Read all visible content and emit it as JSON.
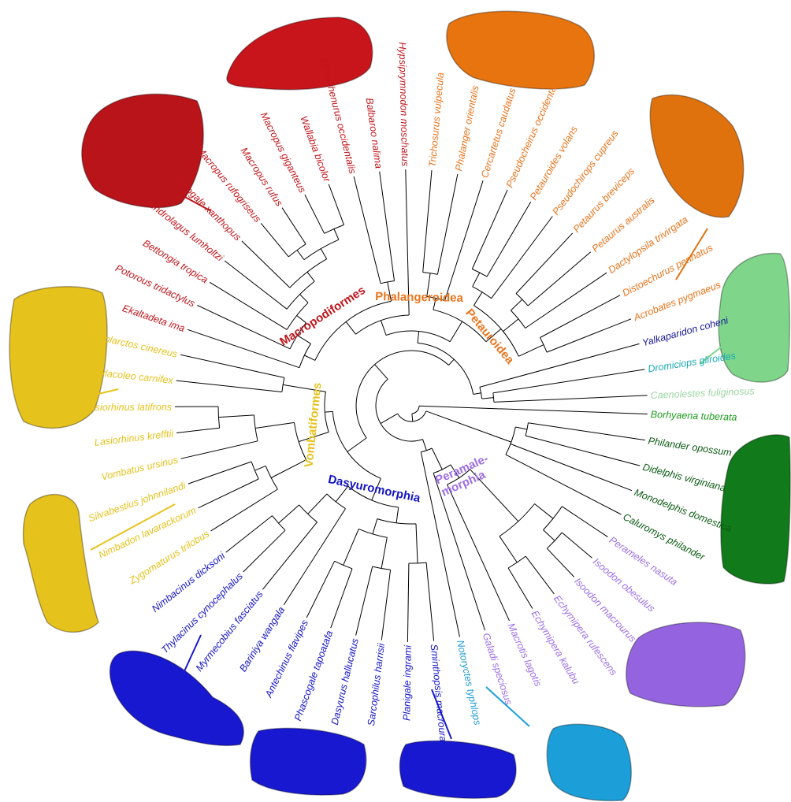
{
  "colors": {
    "macropodiformes": "#c0151b",
    "phalangeroidea": "#e8741c",
    "petauroidea": "#e8741c",
    "yalkaparidon": "#1a1a99",
    "dromiciops": "#19a9b8",
    "caenolestes": "#9bd6a3",
    "borhyaena": "#1c9a1c",
    "didelphimorphia": "#0c5a14",
    "peramelemorphia": "#9c6ee6",
    "notoryctes": "#1f9bd6",
    "dasyuromorphia": "#1414c4",
    "vombatiformes": "#e6c21c",
    "tree": "#000000"
  },
  "clades": {
    "macropodiformes": "Macropodiformes",
    "phalangeroidea": "Phalangeroidea",
    "petauroidea": "Petauroidea",
    "vombatiformes": "Vombatiformes",
    "dasyuromorphia": "Dasyuromorphia",
    "peramelemorphia_1": "Peramale-",
    "peramelemorphia_2": "morphia"
  },
  "taxa": [
    {
      "name": "Borhyaena tuberata",
      "group": "borhyaena"
    },
    {
      "name": "Philander opossum",
      "group": "didelphimorphia"
    },
    {
      "name": "Didelphis virginiana",
      "group": "didelphimorphia"
    },
    {
      "name": "Monodelphis domestica",
      "group": "didelphimorphia"
    },
    {
      "name": "Caluromys philander",
      "group": "didelphimorphia"
    },
    {
      "name": "Perameles nasuta",
      "group": "peramelemorphia"
    },
    {
      "name": "Isoodon obesulus",
      "group": "peramelemorphia"
    },
    {
      "name": "Isoodon macrourus",
      "group": "peramelemorphia"
    },
    {
      "name": "Echymipera rufescens",
      "group": "peramelemorphia"
    },
    {
      "name": "Echymipera kalubu",
      "group": "peramelemorphia"
    },
    {
      "name": "Macrotis lagotis",
      "group": "peramelemorphia"
    },
    {
      "name": "Galadi speciosus",
      "group": "peramelemorphia"
    },
    {
      "name": "Notoryctes typhlops",
      "group": "notoryctes"
    },
    {
      "name": "Sminthopsis macroura",
      "group": "dasyuromorphia"
    },
    {
      "name": "Planigale ingrami",
      "group": "dasyuromorphia"
    },
    {
      "name": "Sarcophilus harrisii",
      "group": "dasyuromorphia"
    },
    {
      "name": "Dasyurus hallucatus",
      "group": "dasyuromorphia"
    },
    {
      "name": "Phascogale tapoatafa",
      "group": "dasyuromorphia"
    },
    {
      "name": "Antechinus flavipes",
      "group": "dasyuromorphia"
    },
    {
      "name": "Bariniya wangala",
      "group": "dasyuromorphia"
    },
    {
      "name": "Myrmecobius fasciatus",
      "group": "dasyuromorphia"
    },
    {
      "name": "Thylacinus cynocephalus",
      "group": "dasyuromorphia"
    },
    {
      "name": "Nimbacinus dicksoni",
      "group": "dasyuromorphia"
    },
    {
      "name": "Zygomaturus trilobus",
      "group": "vombatiformes"
    },
    {
      "name": "Nimbadon lavarackorum",
      "group": "vombatiformes"
    },
    {
      "name": "Silvabestius johnnilandi",
      "group": "vombatiformes"
    },
    {
      "name": "Vombatus ursinus",
      "group": "vombatiformes"
    },
    {
      "name": "Lasiorhinus krefftii",
      "group": "vombatiformes"
    },
    {
      "name": "Lasiorhinus latifrons",
      "group": "vombatiformes"
    },
    {
      "name": "Thylacoleo carnifex",
      "group": "vombatiformes"
    },
    {
      "name": "Phascolarctos cinereus",
      "group": "vombatiformes"
    },
    {
      "name": "Ekaltadeta ima",
      "group": "macropodiformes"
    },
    {
      "name": "Potorous tridactylus",
      "group": "macropodiformes"
    },
    {
      "name": "Bettongia tropica",
      "group": "macropodiformes"
    },
    {
      "name": "Dendrolagus lumholtzi",
      "group": "macropodiformes"
    },
    {
      "name": "Petrogale xanthopus",
      "group": "macropodiformes"
    },
    {
      "name": "Macropus rufogriseus",
      "group": "macropodiformes"
    },
    {
      "name": "Macropus rufus",
      "group": "macropodiformes"
    },
    {
      "name": "Macropus giganteus",
      "group": "macropodiformes"
    },
    {
      "name": "Wallabia bicolor",
      "group": "macropodiformes"
    },
    {
      "name": "Simosthenurus occidentalis",
      "group": "macropodiformes"
    },
    {
      "name": "Balbaroo nalima",
      "group": "macropodiformes"
    },
    {
      "name": "Hypsiprymnodon moschatus",
      "group": "macropodiformes"
    },
    {
      "name": "Trichosurus vulpecula",
      "group": "phalangeroidea"
    },
    {
      "name": "Phalanger orientalis",
      "group": "phalangeroidea"
    },
    {
      "name": "Cercartetus caudatus",
      "group": "phalangeroidea"
    },
    {
      "name": "Pseudocheirus occidentalis",
      "group": "petauroidea"
    },
    {
      "name": "Petauroides volans",
      "group": "petauroidea"
    },
    {
      "name": "Pseudochirops cupreus",
      "group": "petauroidea"
    },
    {
      "name": "Petaurus breviceps",
      "group": "petauroidea"
    },
    {
      "name": "Petaurus australis",
      "group": "petauroidea"
    },
    {
      "name": "Dactylopsila trivirgata",
      "group": "petauroidea"
    },
    {
      "name": "Distoechurus pennatus",
      "group": "petauroidea"
    },
    {
      "name": "Acrobates pygmaeus",
      "group": "petauroidea"
    },
    {
      "name": "Yalkaparidon coheni",
      "group": "yalkaparidon"
    },
    {
      "name": "Dromiciops gliroides",
      "group": "dromiciops"
    },
    {
      "name": "Caenolestes fuliginosus",
      "group": "caenolestes"
    }
  ],
  "brain_models": [
    {
      "name": "macropodiform-brain-1",
      "color": "#c8141b"
    },
    {
      "name": "macropodiform-brain-2",
      "color": "#b8141a"
    },
    {
      "name": "phalangeroid-brain-1",
      "color": "#e8740f"
    },
    {
      "name": "petauroid-brain-2",
      "color": "#e0720e"
    },
    {
      "name": "caenolestes-brain",
      "color": "#7fd68a"
    },
    {
      "name": "didelphid-brain",
      "color": "#117a1a"
    },
    {
      "name": "peramelemorph-brain",
      "color": "#9464e0"
    },
    {
      "name": "notoryctes-brain",
      "color": "#1c9fd8"
    },
    {
      "name": "dasyuromorph-brain-1",
      "color": "#1818d0"
    },
    {
      "name": "dasyuromorph-brain-2",
      "color": "#1818d0"
    },
    {
      "name": "thylacine-brain",
      "color": "#1818d0"
    },
    {
      "name": "vombatiform-brain-1",
      "color": "#e6c21c"
    },
    {
      "name": "vombatiform-brain-2",
      "color": "#e6c21c"
    }
  ]
}
